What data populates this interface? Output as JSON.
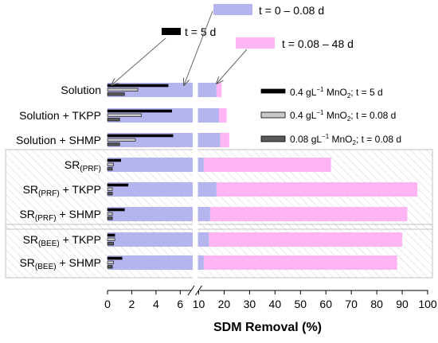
{
  "chart_data": {
    "type": "bar",
    "xlabel": "SDM Removal (%)",
    "x_ticks": [
      0,
      2,
      4,
      6,
      10,
      20,
      30,
      40,
      50,
      60,
      70,
      80,
      90,
      100
    ],
    "x_axis_break": [
      7,
      10
    ],
    "categories": [
      {
        "main": "Solution",
        "sub": "",
        "tail": ""
      },
      {
        "main": "Solution + TKPP",
        "sub": "",
        "tail": ""
      },
      {
        "main": "Solution + SHMP",
        "sub": "",
        "tail": ""
      },
      {
        "main": "SR",
        "sub": "(PRF)",
        "tail": ""
      },
      {
        "main": "SR",
        "sub": "(PRF)",
        "tail": " + TKPP"
      },
      {
        "main": "SR",
        "sub": "(PRF)",
        "tail": " + SHMP"
      },
      {
        "main": "SR",
        "sub": "(BEE)",
        "tail": " + TKPP"
      },
      {
        "main": "SR",
        "sub": "(BEE)",
        "tail": " + SHMP"
      }
    ],
    "series": [
      {
        "name": "t = 0 – 0.08 d",
        "color": "#b4b4ee",
        "values": [
          17,
          18,
          18.5,
          12,
          17,
          14.5,
          14,
          12
        ]
      },
      {
        "name": "t = 0.08 – 48 d",
        "color": "#ffb4f4",
        "values_total": [
          19,
          21,
          22,
          62,
          96,
          92,
          90,
          88
        ]
      },
      {
        "name": "0.4 gL⁻¹ MnO₂; t = 5 d",
        "color": "#000000",
        "values": [
          5.0,
          5.3,
          5.4,
          1.1,
          1.7,
          1.4,
          0.6,
          1.2
        ]
      },
      {
        "name": "0.4 gL⁻¹ MnO₂; t = 0.08 d",
        "color": "#c8c8c8",
        "values": [
          2.5,
          2.8,
          2.3,
          0.5,
          0.4,
          0.4,
          0.6,
          0.5
        ]
      },
      {
        "name": "0.08 gL⁻¹ MnO₂; t = 0.08 d",
        "color": "#5a5a5a",
        "values": [
          1.4,
          1.0,
          1.0,
          0.4,
          0.4,
          0.4,
          0.5,
          0.4
        ]
      }
    ],
    "legend_inner": [
      {
        "pre": "0.4 gL",
        "sup": "−1",
        "mid": " MnO",
        "sub": "2",
        "post": "; t = 5 d"
      },
      {
        "pre": "0.4 gL",
        "sup": "−1",
        "mid": " MnO",
        "sub": "2",
        "post": "; t = 0.08 d"
      },
      {
        "pre": "0.08 gL",
        "sup": "−1",
        "mid": " MnO",
        "sub": "2",
        "post": "; t = 0.08 d"
      }
    ],
    "annotations": {
      "t5": "t = 5 d",
      "t0": "t = 0 – 0.08 d",
      "t48": "t = 0.08 – 48 d"
    },
    "group_boxes": [
      [
        3,
        5
      ],
      [
        6,
        7
      ]
    ]
  }
}
